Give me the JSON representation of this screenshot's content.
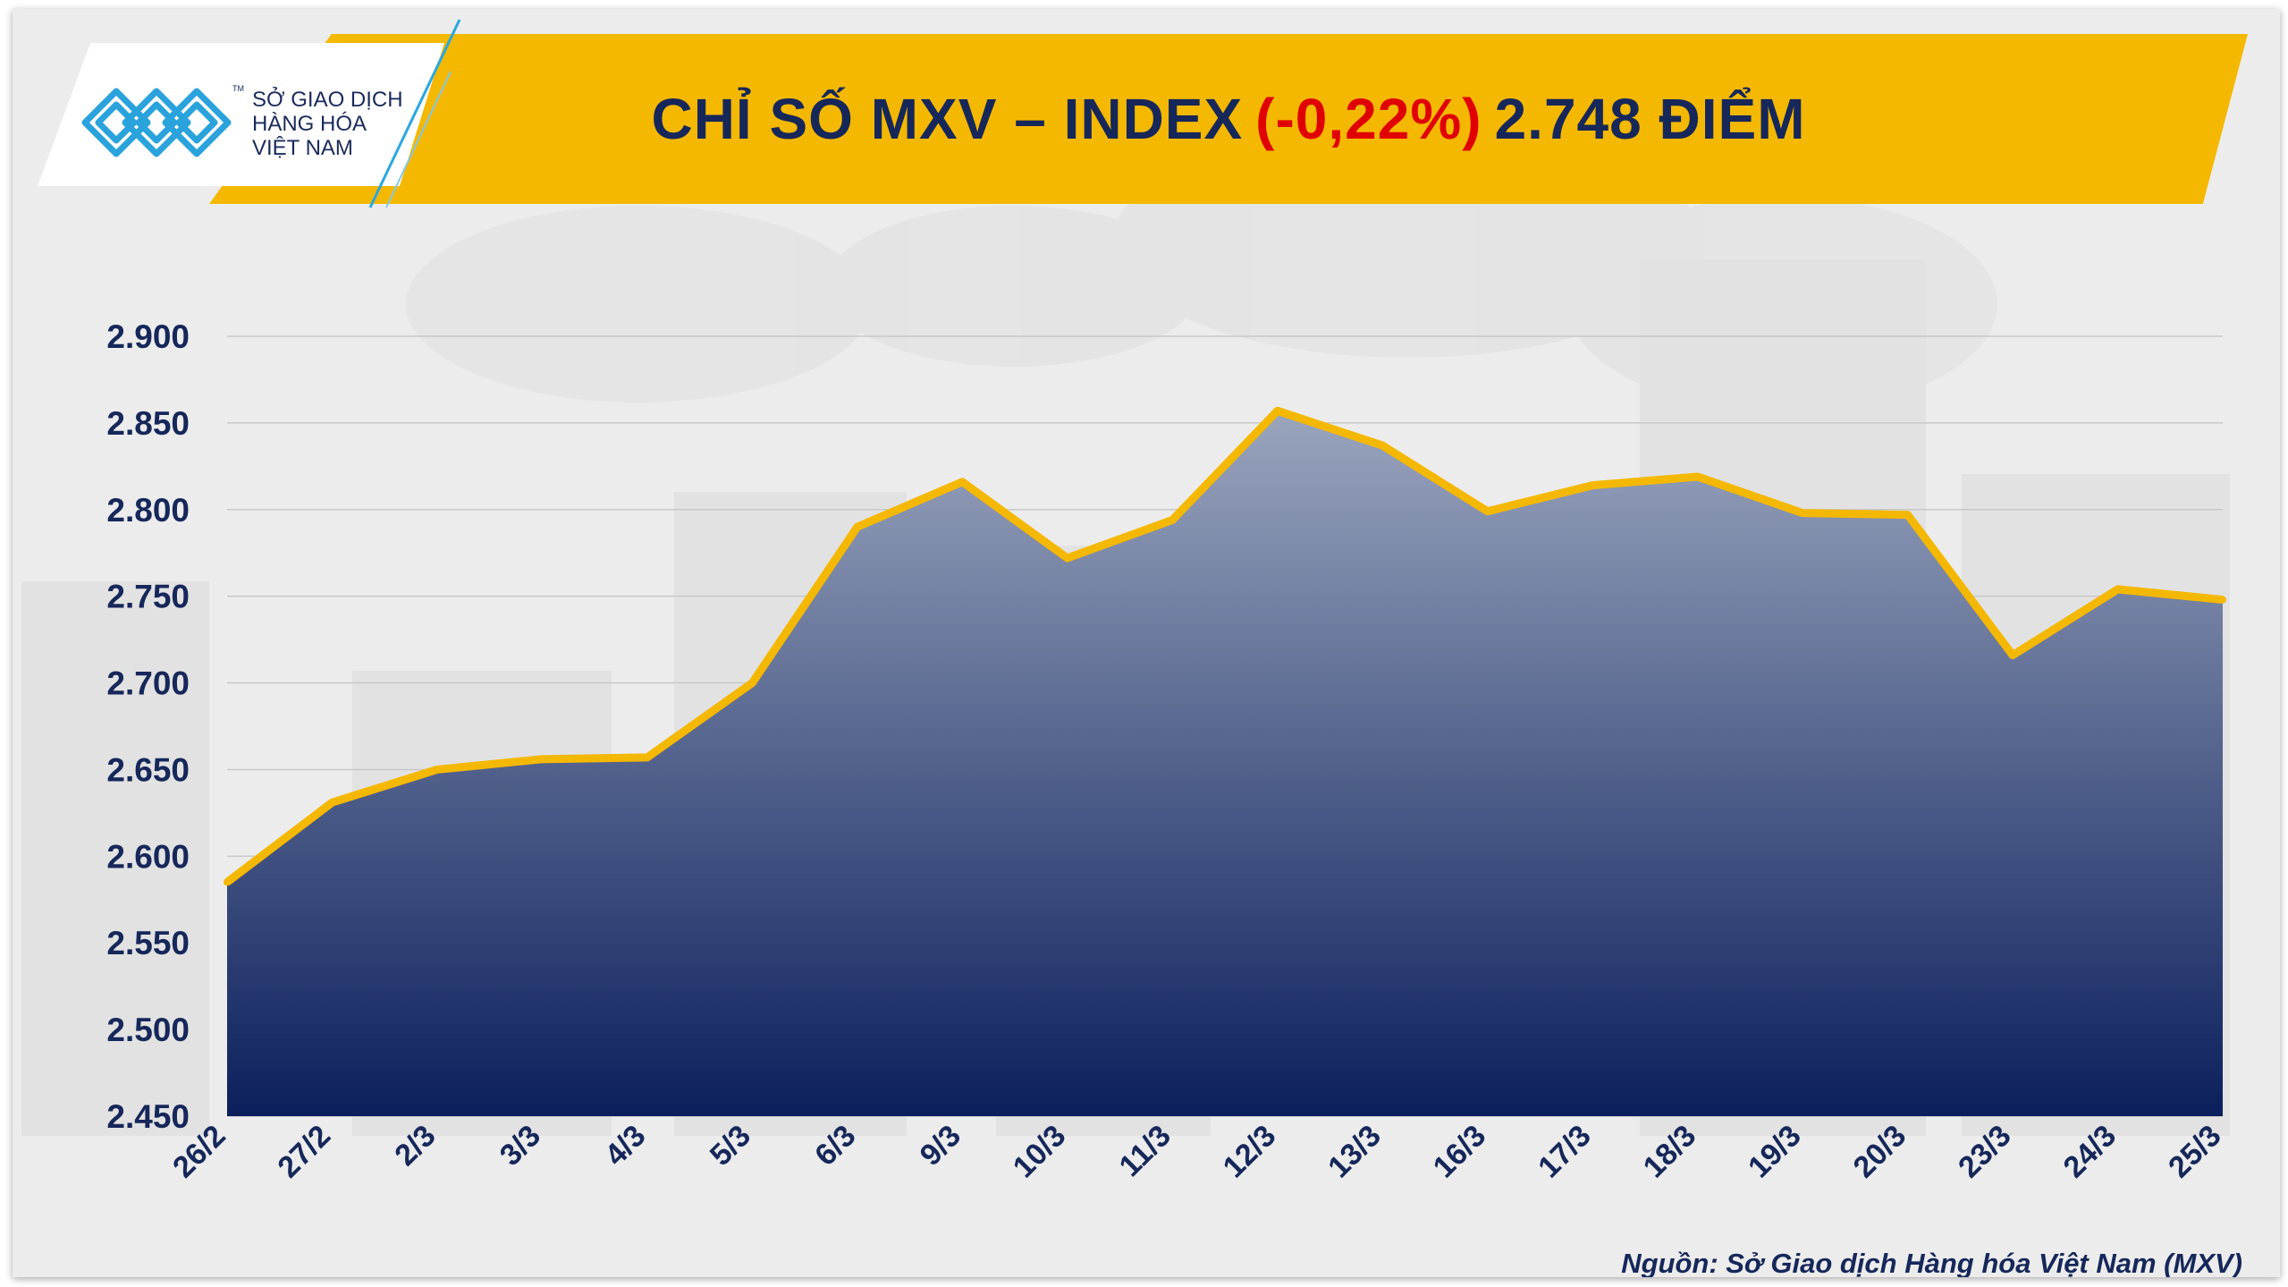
{
  "header": {
    "title_prefix": "CHỈ SỐ MXV – INDEX",
    "title_change": "(-0,22%)",
    "title_value": "2.748 ĐIỂM"
  },
  "logo": {
    "line1": "SỞ GIAO DỊCH",
    "line2": "HÀNG HÓA",
    "line3": "VIỆT NAM",
    "tm": "TM"
  },
  "colors": {
    "banner": "#f5b800",
    "title": "#16275a",
    "change_negative": "#e10000",
    "line": "#f5b800",
    "area_top": "#9aa5bd",
    "area_bottom": "#0b1f5c"
  },
  "chart_data": {
    "type": "area",
    "title": "CHỈ SỐ MXV – INDEX (-0,22%) 2.748 ĐIỂM",
    "xlabel": "",
    "ylabel": "",
    "ylim": [
      2450,
      2900
    ],
    "yticks": [
      2450,
      2500,
      2550,
      2600,
      2650,
      2700,
      2750,
      2800,
      2850,
      2900
    ],
    "ytick_labels": [
      "2.450",
      "2.500",
      "2.550",
      "2.600",
      "2.650",
      "2.700",
      "2.750",
      "2.800",
      "2.850",
      "2.900"
    ],
    "grid": true,
    "categories": [
      "26/2",
      "27/2",
      "2/3",
      "3/3",
      "4/3",
      "5/3",
      "6/3",
      "9/3",
      "10/3",
      "11/3",
      "12/3",
      "13/3",
      "16/3",
      "17/3",
      "18/3",
      "19/3",
      "20/3",
      "23/3",
      "24/3",
      "25/3"
    ],
    "values": [
      2585,
      2631,
      2650,
      2656,
      2657,
      2700,
      2790,
      2816,
      2772,
      2794,
      2857,
      2837,
      2799,
      2814,
      2819,
      2798,
      2797,
      2716,
      2754,
      2748
    ]
  },
  "footer": {
    "source": "Nguồn: Sở Giao dịch Hàng hóa Việt Nam (MXV)"
  }
}
